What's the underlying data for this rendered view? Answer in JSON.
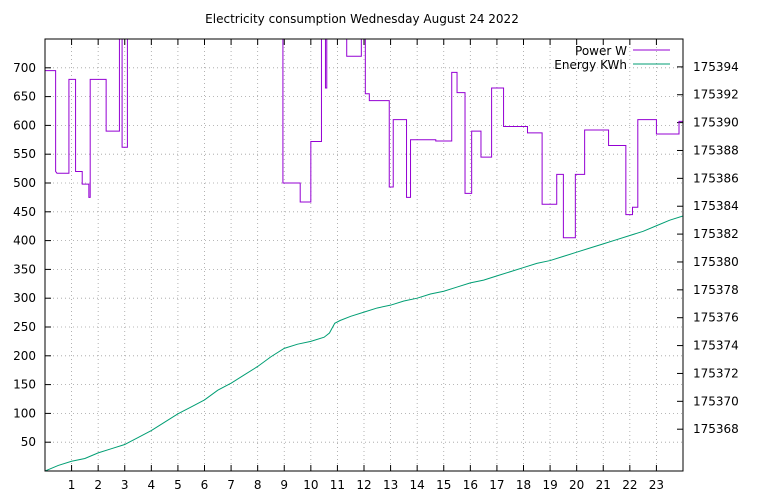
{
  "chart_data": {
    "type": "line",
    "title": "Electricity consumption Wednesday August 24 2022",
    "xlabel": "",
    "ylabel": "",
    "y2label": "",
    "xlim": [
      0,
      24
    ],
    "ylim": [
      0,
      750
    ],
    "y2lim": [
      175365,
      175396
    ],
    "x_ticks": [
      1,
      2,
      3,
      4,
      5,
      6,
      7,
      8,
      9,
      10,
      11,
      12,
      13,
      14,
      15,
      16,
      17,
      18,
      19,
      20,
      21,
      22,
      23
    ],
    "y_ticks": [
      50,
      100,
      150,
      200,
      250,
      300,
      350,
      400,
      450,
      500,
      550,
      600,
      650,
      700
    ],
    "y2_ticks": [
      175368,
      175370,
      175372,
      175374,
      175376,
      175378,
      175380,
      175382,
      175384,
      175386,
      175388,
      175390,
      175392,
      175394
    ],
    "grid": true,
    "legend": "top-right",
    "series": [
      {
        "name": "Power W",
        "axis": "left",
        "color": "#9400d3",
        "step": true,
        "points": [
          [
            0,
            695
          ],
          [
            0.4,
            695
          ],
          [
            0.4,
            520
          ],
          [
            0.45,
            517
          ],
          [
            0.9,
            517
          ],
          [
            0.9,
            680
          ],
          [
            1.15,
            680
          ],
          [
            1.15,
            520
          ],
          [
            1.4,
            520
          ],
          [
            1.4,
            498
          ],
          [
            1.65,
            498
          ],
          [
            1.65,
            475
          ],
          [
            1.7,
            475
          ],
          [
            1.7,
            680
          ],
          [
            2.3,
            680
          ],
          [
            2.3,
            590
          ],
          [
            2.8,
            590
          ],
          [
            2.8,
            750
          ],
          [
            2.9,
            750
          ],
          [
            2.9,
            562
          ],
          [
            3.1,
            562
          ],
          [
            3.1,
            750
          ],
          [
            8.95,
            750
          ],
          [
            8.95,
            500
          ],
          [
            9.6,
            500
          ],
          [
            9.6,
            467
          ],
          [
            10.0,
            467
          ],
          [
            10.0,
            572
          ],
          [
            10.4,
            572
          ],
          [
            10.4,
            750
          ],
          [
            10.55,
            750
          ],
          [
            10.55,
            665
          ],
          [
            10.6,
            665
          ],
          [
            10.6,
            750
          ],
          [
            11.35,
            750
          ],
          [
            11.35,
            720
          ],
          [
            11.9,
            720
          ],
          [
            11.9,
            750
          ],
          [
            12.05,
            750
          ],
          [
            12.05,
            655
          ],
          [
            12.2,
            655
          ],
          [
            12.2,
            643
          ],
          [
            12.95,
            643
          ],
          [
            12.95,
            493
          ],
          [
            13.1,
            493
          ],
          [
            13.1,
            610
          ],
          [
            13.6,
            610
          ],
          [
            13.6,
            475
          ],
          [
            13.75,
            475
          ],
          [
            13.75,
            575
          ],
          [
            14.7,
            575
          ],
          [
            14.7,
            573
          ],
          [
            15.3,
            573
          ],
          [
            15.3,
            692
          ],
          [
            15.5,
            692
          ],
          [
            15.5,
            657
          ],
          [
            15.8,
            657
          ],
          [
            15.8,
            482
          ],
          [
            16.05,
            482
          ],
          [
            16.05,
            590
          ],
          [
            16.4,
            590
          ],
          [
            16.4,
            545
          ],
          [
            16.8,
            545
          ],
          [
            16.8,
            665
          ],
          [
            17.25,
            665
          ],
          [
            17.25,
            598
          ],
          [
            18.15,
            598
          ],
          [
            18.15,
            587
          ],
          [
            18.7,
            587
          ],
          [
            18.7,
            463
          ],
          [
            19.25,
            463
          ],
          [
            19.25,
            515
          ],
          [
            19.5,
            515
          ],
          [
            19.5,
            405
          ],
          [
            19.95,
            405
          ],
          [
            19.95,
            515
          ],
          [
            20.3,
            515
          ],
          [
            20.3,
            592
          ],
          [
            21.2,
            592
          ],
          [
            21.2,
            565
          ],
          [
            21.85,
            565
          ],
          [
            21.85,
            445
          ],
          [
            22.1,
            445
          ],
          [
            22.1,
            458
          ],
          [
            22.3,
            458
          ],
          [
            22.3,
            610
          ],
          [
            23.0,
            610
          ],
          [
            23.0,
            585
          ],
          [
            23.85,
            585
          ],
          [
            23.85,
            607
          ],
          [
            24.0,
            607
          ]
        ]
      },
      {
        "name": "Energy KWh",
        "axis": "right",
        "color": "#009e73",
        "step": false,
        "points": [
          [
            0,
            175365.0
          ],
          [
            0.5,
            175365.4
          ],
          [
            1,
            175365.7
          ],
          [
            1.5,
            175365.9
          ],
          [
            2,
            175366.3
          ],
          [
            2.5,
            175366.6
          ],
          [
            3,
            175366.9
          ],
          [
            3.5,
            175367.4
          ],
          [
            4,
            175367.9
          ],
          [
            4.5,
            175368.5
          ],
          [
            5,
            175369.1
          ],
          [
            5.5,
            175369.6
          ],
          [
            6,
            175370.1
          ],
          [
            6.5,
            175370.8
          ],
          [
            7,
            175371.3
          ],
          [
            7.5,
            175371.9
          ],
          [
            8,
            175372.5
          ],
          [
            8.5,
            175373.2
          ],
          [
            9,
            175373.8
          ],
          [
            9.5,
            175374.1
          ],
          [
            10,
            175374.3
          ],
          [
            10.5,
            175374.6
          ],
          [
            10.7,
            175374.9
          ],
          [
            10.9,
            175375.6
          ],
          [
            11.1,
            175375.8
          ],
          [
            11.5,
            175376.1
          ],
          [
            12,
            175376.4
          ],
          [
            12.5,
            175376.7
          ],
          [
            13,
            175376.9
          ],
          [
            13.5,
            175377.2
          ],
          [
            14,
            175377.4
          ],
          [
            14.5,
            175377.7
          ],
          [
            15,
            175377.9
          ],
          [
            15.5,
            175378.2
          ],
          [
            16,
            175378.5
          ],
          [
            16.5,
            175378.7
          ],
          [
            17,
            175379.0
          ],
          [
            17.5,
            175379.3
          ],
          [
            18,
            175379.6
          ],
          [
            18.5,
            175379.9
          ],
          [
            19,
            175380.1
          ],
          [
            19.5,
            175380.4
          ],
          [
            20,
            175380.7
          ],
          [
            20.5,
            175381.0
          ],
          [
            21,
            175381.3
          ],
          [
            21.5,
            175381.6
          ],
          [
            22,
            175381.9
          ],
          [
            22.5,
            175382.2
          ],
          [
            23,
            175382.6
          ],
          [
            23.5,
            175383.0
          ],
          [
            24,
            175383.3
          ]
        ]
      }
    ]
  }
}
